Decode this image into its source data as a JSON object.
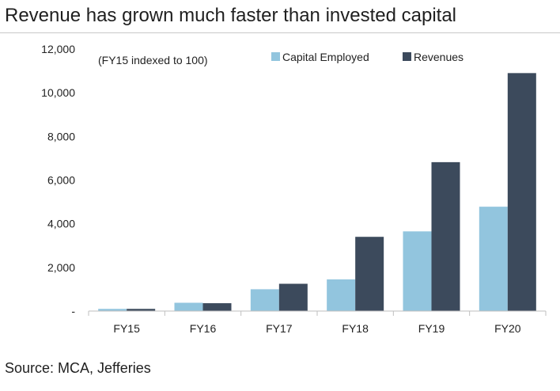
{
  "header": {
    "title": "Revenue has grown much faster than invested capital"
  },
  "footer": {
    "source": "Source: MCA, Jefferies"
  },
  "chart_data": {
    "type": "bar",
    "title": "Revenue has grown much faster than invested capital",
    "annotation": "(FY15 indexed to 100)",
    "categories": [
      "FY15",
      "FY16",
      "FY17",
      "FY18",
      "FY19",
      "FY20"
    ],
    "series": [
      {
        "name": "Capital Employed",
        "color": "#92c5de",
        "values": [
          100,
          380,
          1000,
          1450,
          3650,
          4780
        ]
      },
      {
        "name": "Revenues",
        "color": "#3c4a5c",
        "values": [
          100,
          360,
          1250,
          3400,
          6820,
          10900
        ]
      }
    ],
    "ylim": [
      0,
      12000
    ],
    "yticks": [
      0,
      2000,
      4000,
      6000,
      8000,
      10000,
      12000
    ],
    "ytick_labels": [
      "-",
      "2,000",
      "4,000",
      "6,000",
      "8,000",
      "10,000",
      "12,000"
    ],
    "xlabel": "",
    "ylabel": "",
    "grid": false,
    "legend_position": "top-right"
  }
}
